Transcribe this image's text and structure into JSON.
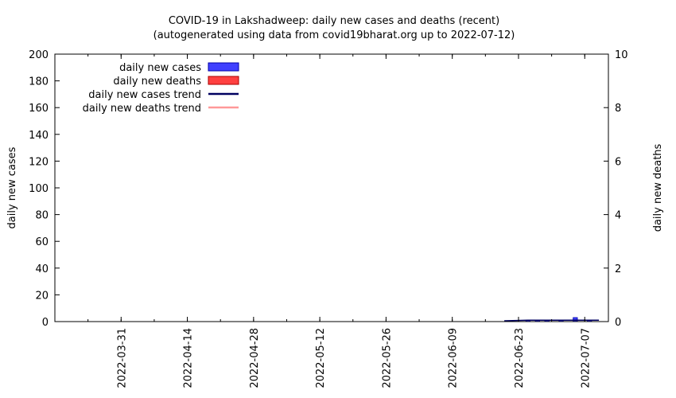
{
  "chart_data": {
    "type": "bar",
    "title": "COVID-19 in Lakshadweep: daily new cases and deaths (recent)",
    "subtitle": "(autogenerated using data from covid19bharat.org up to 2022-07-12)",
    "ylabel": "daily new cases",
    "y2label": "daily new deaths",
    "ylim": [
      0,
      200
    ],
    "y2lim": [
      0,
      10
    ],
    "yticks": [
      0,
      20,
      40,
      60,
      80,
      100,
      120,
      140,
      160,
      180,
      200
    ],
    "y2ticks": [
      0,
      2,
      4,
      6,
      8,
      10
    ],
    "xlim": [
      "2022-03-17",
      "2022-07-12"
    ],
    "xticks": [
      "2022-03-31",
      "2022-04-14",
      "2022-04-28",
      "2022-05-12",
      "2022-05-26",
      "2022-06-09",
      "2022-06-23",
      "2022-07-07"
    ],
    "grid": false,
    "legend_position": "top-left",
    "legend": [
      {
        "label": "daily new cases",
        "kind": "box",
        "color": "#4040ff",
        "stroke": "#0000aa"
      },
      {
        "label": "daily new deaths",
        "kind": "box",
        "color": "#ff4040",
        "stroke": "#aa0000"
      },
      {
        "label": "daily new cases trend",
        "kind": "line",
        "color": "#000060"
      },
      {
        "label": "daily new deaths trend",
        "kind": "line",
        "color": "#ff9999"
      }
    ],
    "series": [
      {
        "name": "daily new cases",
        "axis": "left",
        "color": "#4040ff",
        "points": [
          {
            "date": "2022-06-25",
            "value": 1
          },
          {
            "date": "2022-06-27",
            "value": 1
          },
          {
            "date": "2022-06-29",
            "value": 1
          },
          {
            "date": "2022-07-02",
            "value": 1
          },
          {
            "date": "2022-07-05",
            "value": 3
          },
          {
            "date": "2022-07-08",
            "value": 1
          }
        ]
      },
      {
        "name": "daily new deaths",
        "axis": "right",
        "color": "#ff4040",
        "points": []
      },
      {
        "name": "daily new cases trend",
        "axis": "left",
        "color": "#000060",
        "points": [
          {
            "date": "2022-06-20",
            "value": 0.6
          },
          {
            "date": "2022-06-25",
            "value": 1.0
          },
          {
            "date": "2022-06-30",
            "value": 1.0
          },
          {
            "date": "2022-07-05",
            "value": 1.1
          },
          {
            "date": "2022-07-10",
            "value": 1.0
          }
        ]
      },
      {
        "name": "daily new deaths trend",
        "axis": "right",
        "color": "#ff9999",
        "points": []
      }
    ]
  }
}
